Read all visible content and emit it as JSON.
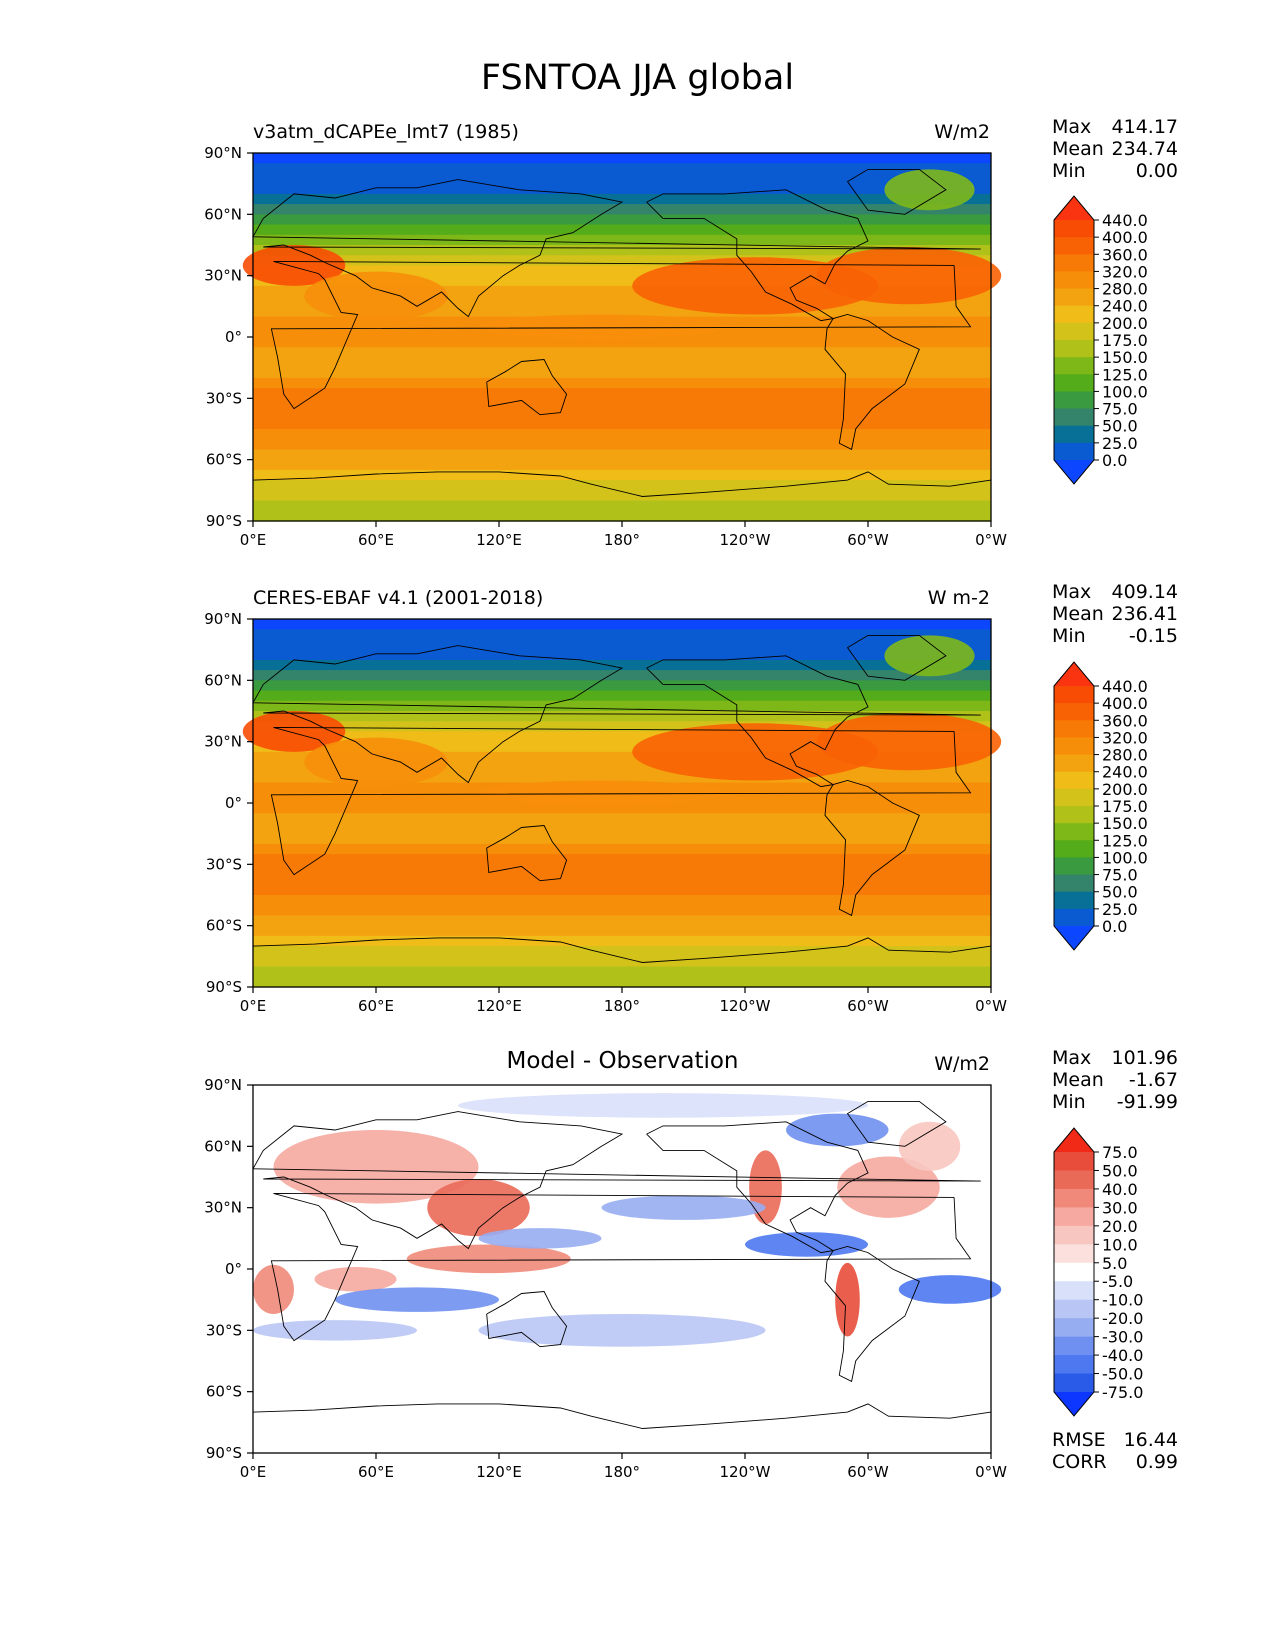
{
  "title": "FSNTOA JJA global",
  "colors": {
    "test_levels": [
      "#0d46ff",
      "#0a5ad2",
      "#087096",
      "#34846c",
      "#3a9a40",
      "#54ac1a",
      "#7eb818",
      "#b0c21a",
      "#d2c21a",
      "#f0bc18",
      "#f3a30f",
      "#f78e0a",
      "#f87a06",
      "#f86204",
      "#f84c04",
      "#fa3410"
    ],
    "diff_levels": [
      "#0d36ff",
      "#2a5ae8",
      "#4d78f0",
      "#6f90f0",
      "#97adf2",
      "#b9c6f5",
      "#d8e0fa",
      "#ffffff",
      "#fbe0dd",
      "#f8c6c0",
      "#f5a9a0",
      "#f0897a",
      "#ea6a58",
      "#e84c3a",
      "#f02a16"
    ],
    "coastline": "#000000"
  },
  "chart_data": [
    {
      "type": "heatmap",
      "name": "test",
      "label": "v3atm_dCAPEe_lmt7 (1985)",
      "units": "W/m2",
      "stats": {
        "max_label": "Max",
        "max": "414.17",
        "mean_label": "Mean",
        "mean": "234.74",
        "min_label": "Min",
        "min": "0.00"
      },
      "xticks": [
        "0°E",
        "60°E",
        "120°E",
        "180°",
        "120°W",
        "60°W",
        "0°W"
      ],
      "yticks": [
        "90°N",
        "60°N",
        "30°N",
        "0°",
        "30°S",
        "60°S",
        "90°S"
      ],
      "lon_range": [
        0,
        360
      ],
      "lat_range": [
        -90,
        90
      ],
      "colorbar_ticks": [
        "440.0",
        "400.0",
        "360.0",
        "320.0",
        "280.0",
        "240.0",
        "200.0",
        "175.0",
        "150.0",
        "125.0",
        "100.0",
        "75.0",
        "50.0",
        "25.0",
        "0.0"
      ],
      "zonal_levels": [
        0,
        1,
        1,
        1,
        2,
        3,
        4,
        5,
        6,
        7,
        8,
        9,
        9,
        10,
        10,
        10,
        11,
        11,
        11,
        10,
        10,
        10,
        11,
        12,
        12,
        12,
        12,
        11,
        11,
        10,
        10,
        9,
        8,
        8,
        7,
        7
      ]
    },
    {
      "type": "heatmap",
      "name": "reference",
      "label": "CERES-EBAF v4.1 (2001-2018)",
      "units": "W m-2",
      "stats": {
        "max_label": "Max",
        "max": "409.14",
        "mean_label": "Mean",
        "mean": "236.41",
        "min_label": "Min",
        "min": "-0.15"
      },
      "xticks": [
        "0°E",
        "60°E",
        "120°E",
        "180°",
        "120°W",
        "60°W",
        "0°W"
      ],
      "yticks": [
        "90°N",
        "60°N",
        "30°N",
        "0°",
        "30°S",
        "60°S",
        "90°S"
      ],
      "lon_range": [
        0,
        360
      ],
      "lat_range": [
        -90,
        90
      ],
      "colorbar_ticks": [
        "440.0",
        "400.0",
        "360.0",
        "320.0",
        "280.0",
        "240.0",
        "200.0",
        "175.0",
        "150.0",
        "125.0",
        "100.0",
        "75.0",
        "50.0",
        "25.0",
        "0.0"
      ],
      "zonal_levels": [
        0,
        1,
        1,
        1,
        2,
        3,
        4,
        5,
        6,
        7,
        8,
        9,
        9,
        10,
        10,
        10,
        11,
        11,
        11,
        10,
        10,
        10,
        11,
        12,
        12,
        12,
        12,
        11,
        11,
        10,
        10,
        9,
        8,
        8,
        7,
        7
      ]
    },
    {
      "type": "heatmap",
      "name": "difference",
      "title": "Model - Observation",
      "units": "W/m2",
      "stats": {
        "max_label": "Max",
        "max": "101.96",
        "mean_label": "Mean",
        "mean": "-1.67",
        "min_label": "Min",
        "min": "-91.99"
      },
      "metrics": {
        "rmse_label": "RMSE",
        "rmse": "16.44",
        "corr_label": "CORR",
        "corr": "0.99"
      },
      "xticks": [
        "0°E",
        "60°E",
        "120°E",
        "180°",
        "120°W",
        "60°W",
        "0°W"
      ],
      "yticks": [
        "90°N",
        "60°N",
        "30°N",
        "0°",
        "30°S",
        "60°S",
        "90°S"
      ],
      "lon_range": [
        0,
        360
      ],
      "lat_range": [
        -90,
        90
      ],
      "colorbar_ticks": [
        "75.0",
        "50.0",
        "40.0",
        "30.0",
        "20.0",
        "10.0",
        "5.0",
        "-5.0",
        "-10.0",
        "-20.0",
        "-30.0",
        "-40.0",
        "-50.0",
        "-75.0"
      ]
    }
  ]
}
